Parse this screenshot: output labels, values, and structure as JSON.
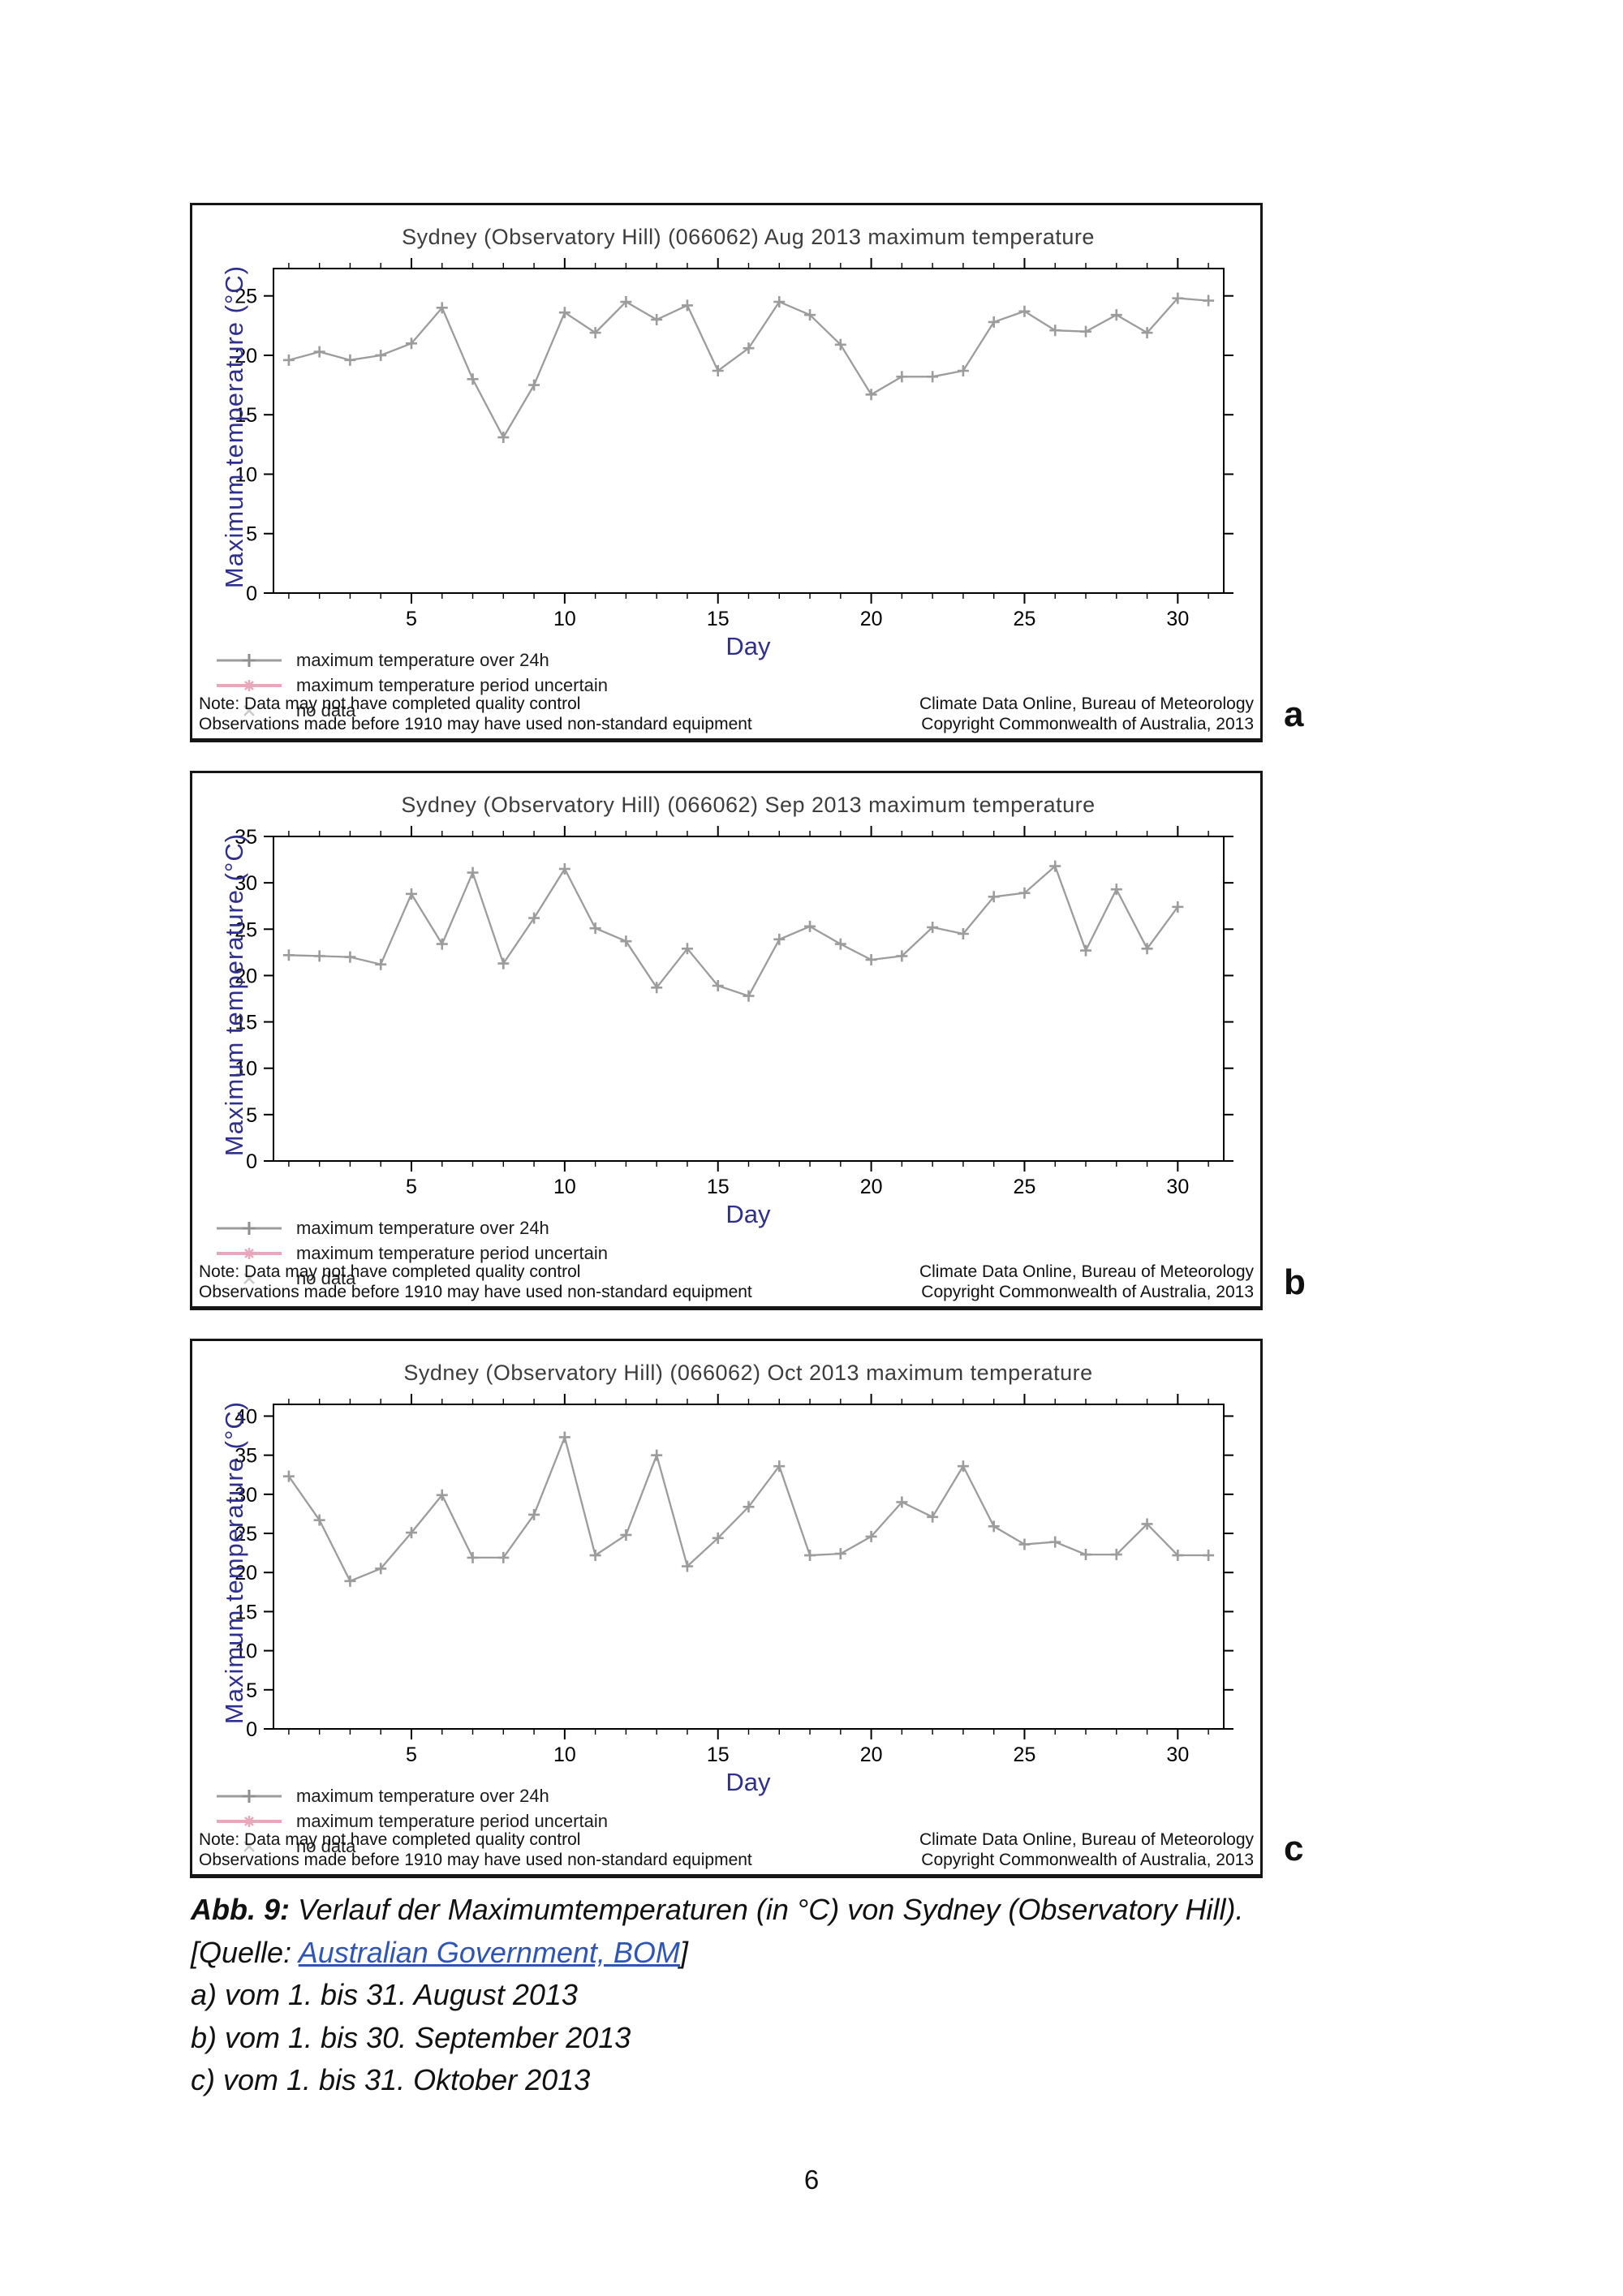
{
  "page": {
    "number": "6"
  },
  "colors": {
    "data_line": "#9c9c9c",
    "uncertain_pink": "#e8a8bc",
    "no_data_gray": "#c9c9c9",
    "axis_label_navy": "#2f2f8f",
    "title_gray": "#3d3d3d",
    "axis_black": "#000000",
    "link_blue": "#2d55b8"
  },
  "legend": {
    "items": [
      {
        "label": "maximum temperature over 24h",
        "marker": "line-plus",
        "color": "#9c9c9c"
      },
      {
        "label": "maximum temperature period uncertain",
        "marker": "line-star",
        "color": "#e8a8bc"
      },
      {
        "label": "no data",
        "marker": "x",
        "color": "#c9c9c9"
      }
    ]
  },
  "notes": {
    "left": [
      "Note: Data may not have completed quality control",
      "Observations made before 1910 may have used non-standard equipment"
    ],
    "right": [
      "Climate Data Online, Bureau of Meteorology",
      "Copyright Commonwealth of Australia, 2013"
    ]
  },
  "chart_data": [
    {
      "type": "line",
      "panel_label": "a",
      "title": "Sydney (Observatory Hill) (066062) Aug 2013 maximum temperature",
      "xlabel": "Day",
      "ylabel": "Maximum temperature (°C)",
      "series_name": "maximum temperature over 24h",
      "x": [
        1,
        2,
        3,
        4,
        5,
        6,
        7,
        8,
        9,
        10,
        11,
        12,
        13,
        14,
        15,
        16,
        17,
        18,
        19,
        20,
        21,
        22,
        23,
        24,
        25,
        26,
        27,
        28,
        29,
        30,
        31
      ],
      "values": [
        19.6,
        20.3,
        19.6,
        20.0,
        21.0,
        24.0,
        18.0,
        13.1,
        17.5,
        23.6,
        21.9,
        24.5,
        23.0,
        24.2,
        18.7,
        20.6,
        24.5,
        23.4,
        20.9,
        16.7,
        18.2,
        18.2,
        18.7,
        22.8,
        23.7,
        22.1,
        22.0,
        23.4,
        21.9,
        24.8,
        24.6
      ],
      "xlim": [
        0.5,
        31.5
      ],
      "ylim": [
        0,
        27.3
      ],
      "yticks": [
        0,
        5,
        10,
        15,
        20,
        25
      ],
      "xticks": [
        5,
        10,
        15,
        20,
        25,
        30
      ],
      "grid": "off",
      "legend_position": "below-left"
    },
    {
      "type": "line",
      "panel_label": "b",
      "title": "Sydney (Observatory Hill) (066062) Sep 2013 maximum temperature",
      "xlabel": "Day",
      "ylabel": "Maximum temperature (°C)",
      "series_name": "maximum temperature over 24h",
      "x": [
        1,
        2,
        3,
        4,
        5,
        6,
        7,
        8,
        9,
        10,
        11,
        12,
        13,
        14,
        15,
        16,
        17,
        18,
        19,
        20,
        21,
        22,
        23,
        24,
        25,
        26,
        27,
        28,
        29,
        30
      ],
      "values": [
        22.2,
        22.1,
        22.0,
        21.2,
        28.8,
        23.4,
        31.1,
        21.3,
        26.2,
        31.5,
        25.1,
        23.7,
        18.7,
        22.9,
        18.9,
        17.8,
        23.9,
        25.3,
        23.4,
        21.7,
        22.1,
        25.2,
        24.5,
        28.5,
        28.9,
        31.8,
        22.7,
        29.3,
        22.9,
        27.4
      ],
      "xlim": [
        0.5,
        31.5
      ],
      "ylim": [
        0,
        35
      ],
      "yticks": [
        0,
        5,
        10,
        15,
        20,
        25,
        30,
        35
      ],
      "xticks": [
        5,
        10,
        15,
        20,
        25,
        30
      ],
      "grid": "off",
      "legend_position": "below-left"
    },
    {
      "type": "line",
      "panel_label": "c",
      "title": "Sydney (Observatory Hill) (066062) Oct 2013 maximum temperature",
      "xlabel": "Day",
      "ylabel": "Maximum temperature (°C)",
      "series_name": "maximum temperature over 24h",
      "x": [
        1,
        2,
        3,
        4,
        5,
        6,
        7,
        8,
        9,
        10,
        11,
        12,
        13,
        14,
        15,
        16,
        17,
        18,
        19,
        20,
        21,
        22,
        23,
        24,
        25,
        26,
        27,
        28,
        29,
        30,
        31
      ],
      "values": [
        32.3,
        26.7,
        18.9,
        20.5,
        25.1,
        29.9,
        21.9,
        21.9,
        27.4,
        37.3,
        22.2,
        24.8,
        35.0,
        20.8,
        24.4,
        28.4,
        33.6,
        22.2,
        22.4,
        24.6,
        29.0,
        27.1,
        33.6,
        25.9,
        23.6,
        23.9,
        22.3,
        22.3,
        26.2,
        22.2,
        22.2
      ],
      "xlim": [
        0.5,
        31.5
      ],
      "ylim": [
        0,
        41.5
      ],
      "yticks": [
        0,
        5,
        10,
        15,
        20,
        25,
        30,
        35,
        40
      ],
      "xticks": [
        5,
        10,
        15,
        20,
        25,
        30
      ],
      "grid": "off",
      "legend_position": "below-left"
    }
  ],
  "caption": {
    "tag": "Abb. 9:",
    "text": " Verlauf der Maximumtemperaturen (in °C) von Sydney (Observatory Hill).",
    "source_prefix": "[Quelle: ",
    "source_link": "Australian Government, BOM",
    "source_suffix": "]",
    "items": [
      "a) vom 1. bis 31. August 2013",
      "b) vom 1. bis 30. September 2013",
      "c) vom 1. bis 31. Oktober 2013"
    ]
  }
}
